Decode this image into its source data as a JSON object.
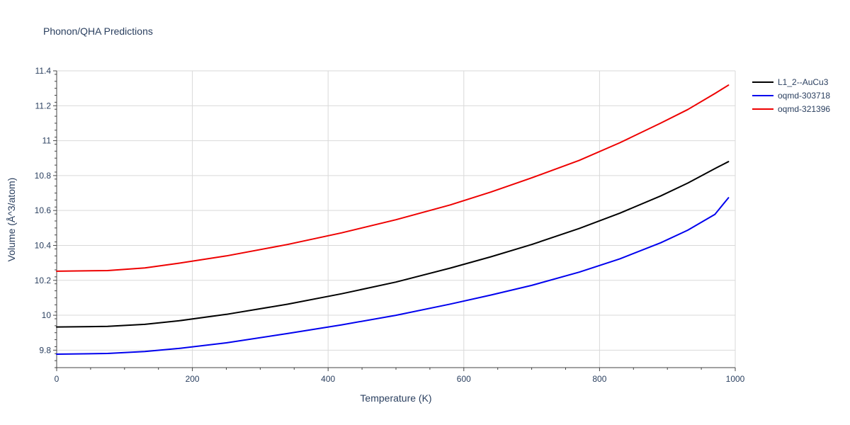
{
  "chart_data": {
    "type": "line",
    "title": "Phonon/QHA Predictions",
    "xlabel": "Temperature (K)",
    "ylabel": "Volume (Å^3/atom)",
    "xlim": [
      0,
      1000
    ],
    "ylim": [
      9.7,
      11.4
    ],
    "xticks": [
      0,
      200,
      400,
      600,
      800,
      1000
    ],
    "yticks": [
      9.8,
      10,
      10.2,
      10.4,
      10.6,
      10.8,
      11,
      11.2,
      11.4
    ],
    "ytick_labels": [
      "9.8",
      "10",
      "10.2",
      "10.4",
      "10.6",
      "10.8",
      "11",
      "11.2",
      "11.4"
    ],
    "grid": true,
    "legend_position": "top-right",
    "x": [
      0,
      75,
      130,
      180,
      250,
      340,
      420,
      500,
      580,
      640,
      700,
      770,
      830,
      890,
      930,
      970,
      990
    ],
    "series": [
      {
        "name": "L1_2--AuCu3",
        "color": "#000000",
        "values": [
          9.933,
          9.936,
          9.948,
          9.968,
          10.005,
          10.063,
          10.123,
          10.19,
          10.27,
          10.335,
          10.405,
          10.497,
          10.585,
          10.683,
          10.757,
          10.84,
          10.88
        ]
      },
      {
        "name": "oqmd-303718",
        "color": "#0000ee",
        "values": [
          9.777,
          9.781,
          9.792,
          9.81,
          9.842,
          9.895,
          9.945,
          10.0,
          10.064,
          10.116,
          10.171,
          10.247,
          10.323,
          10.415,
          10.487,
          10.578,
          10.673
        ]
      },
      {
        "name": "oqmd-321396",
        "color": "#ee0000",
        "values": [
          10.252,
          10.256,
          10.271,
          10.298,
          10.34,
          10.405,
          10.472,
          10.547,
          10.632,
          10.706,
          10.787,
          10.887,
          10.988,
          11.1,
          11.178,
          11.27,
          11.318
        ]
      }
    ]
  }
}
